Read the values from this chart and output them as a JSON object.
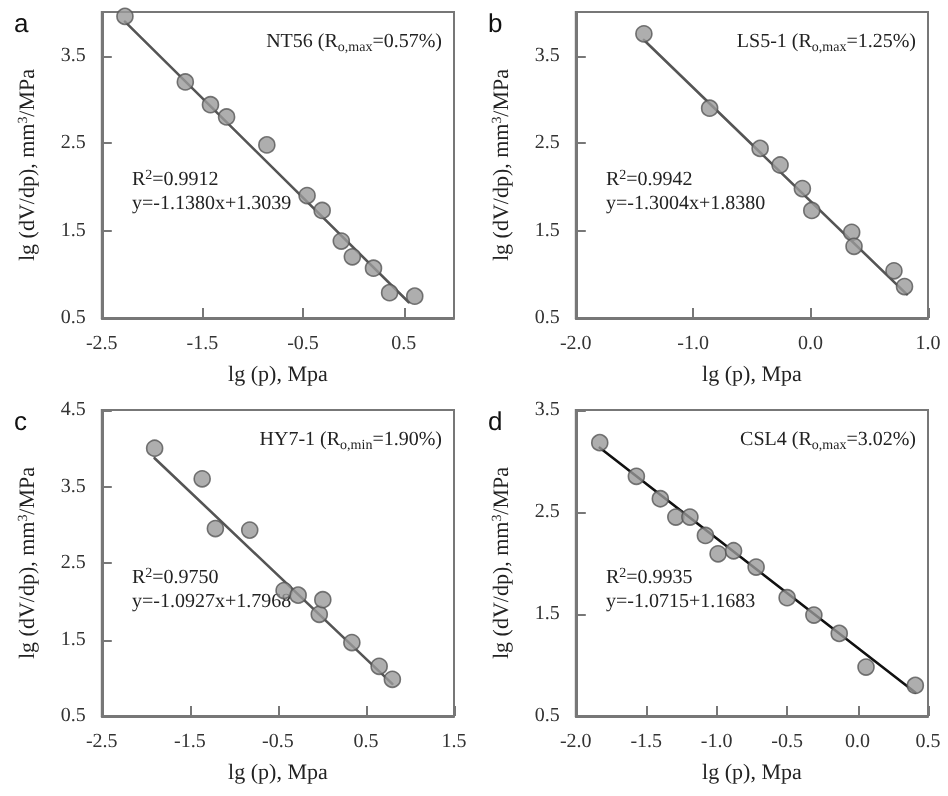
{
  "chart_data": [
    {
      "type": "scatter",
      "title": "a",
      "xlabel": "lg (p), Mpa",
      "ylabel": "lg (dV/dp), mm$^{3}$/MPa",
      "annotations": [
        "NT56 (R$_{o,max}$=0.57%)",
        "R$^{2}$=0.9912",
        "y=-1.1380x+1.3039"
      ],
      "xlim": [
        -2.5,
        1.0
      ],
      "xticks": [
        -2.5,
        -1.5,
        -0.5,
        0.5
      ],
      "ylim": [
        0.5,
        4.0
      ],
      "yticks": [
        0.5,
        1.5,
        2.5,
        3.5
      ],
      "series": [
        {
          "marker": "circle",
          "color": "#9a9a9a",
          "x": [
            -2.27,
            -1.67,
            -1.42,
            -1.26,
            -0.86,
            -0.46,
            -0.31,
            -0.12,
            -0.01,
            0.2,
            0.36,
            0.61
          ],
          "values": [
            3.95,
            3.2,
            2.94,
            2.8,
            2.48,
            1.9,
            1.73,
            1.38,
            1.2,
            1.07,
            0.79,
            0.75
          ]
        },
        {
          "type": "line",
          "color": "#555555",
          "x": [
            -2.27,
            0.55
          ],
          "values": [
            3.89,
            0.68
          ]
        }
      ]
    },
    {
      "type": "scatter",
      "title": "b",
      "xlabel": "lg (p), Mpa",
      "ylabel": "lg (dV/dp), mm$^{3}$/MPa",
      "annotations": [
        "LS5-1 (R$_{o,max}$=1.25%)",
        "R$^{2}$=0.9942",
        "y=-1.3004x+1.8380"
      ],
      "xlim": [
        -2.0,
        1.0
      ],
      "xticks": [
        {
          "value": -2,
          "label": "-2.0"
        },
        {
          "value": -1,
          "label": "-1.0"
        },
        {
          "value": 0,
          "label": "0.0"
        },
        {
          "value": 1,
          "label": "1.0"
        }
      ],
      "ylim": [
        0.5,
        4.0
      ],
      "yticks": [
        0.5,
        1.5,
        2.5,
        3.5
      ],
      "series": [
        {
          "marker": "circle",
          "color": "#9a9a9a",
          "x": [
            -1.42,
            -0.86,
            -0.43,
            -0.26,
            -0.07,
            0.01,
            0.35,
            0.37,
            0.71,
            0.8
          ],
          "values": [
            3.75,
            2.9,
            2.44,
            2.25,
            1.98,
            1.73,
            1.48,
            1.32,
            1.04,
            0.86
          ]
        },
        {
          "type": "line",
          "color": "#555555",
          "x": [
            -1.42,
            0.82
          ],
          "values": [
            3.68,
            0.77
          ]
        }
      ]
    },
    {
      "type": "scatter",
      "title": "c",
      "xlabel": "lg (p), Mpa",
      "ylabel": "lg (dV/dp), mm$^{3}$/MPa",
      "annotations": [
        "HY7-1 (R$_{o,min}$=1.90%)",
        "R$^{2}$=0.9750",
        "y=-1.0927x+1.7968"
      ],
      "xlim": [
        -2.5,
        1.5
      ],
      "xticks": [
        -2.5,
        -1.5,
        -0.5,
        0.5,
        1.5
      ],
      "ylim": [
        0.5,
        4.5
      ],
      "yticks": [
        0.5,
        1.5,
        2.5,
        3.5,
        4.5
      ],
      "series": [
        {
          "marker": "circle",
          "color": "#9a9a9a",
          "x": [
            -1.9,
            -1.36,
            -1.21,
            -0.82,
            -0.43,
            -0.27,
            -0.03,
            0.01,
            0.34,
            0.65,
            0.8
          ],
          "values": [
            4.0,
            3.6,
            2.95,
            2.93,
            2.14,
            2.08,
            1.83,
            2.02,
            1.46,
            1.15,
            0.98
          ]
        },
        {
          "type": "line",
          "color": "#555555",
          "x": [
            -1.9,
            0.8
          ],
          "values": [
            3.87,
            0.92
          ]
        }
      ]
    },
    {
      "type": "scatter",
      "title": "d",
      "xlabel": "lg (p), Mpa",
      "ylabel": "lg (dV/dp), mm$^{3}$/MPa",
      "annotations": [
        "CSL4 (R$_{o,max}$=3.02%)",
        "R$^{2}$=0.9935",
        "y=-1.0715+1.1683"
      ],
      "xlim": [
        -2.0,
        0.5
      ],
      "xticks": [
        {
          "value": -2,
          "label": "-2.0"
        },
        -1.5,
        {
          "value": -1,
          "label": "-1.0"
        },
        -0.5,
        {
          "value": 0,
          "label": "0.0"
        },
        0.5
      ],
      "ylim": [
        0.5,
        3.5
      ],
      "yticks": [
        0.5,
        1.5,
        2.5,
        3.5
      ],
      "series": [
        {
          "marker": "circle",
          "color": "#9a9a9a",
          "x": [
            -1.83,
            -1.57,
            -1.4,
            -1.29,
            -1.19,
            -1.08,
            -0.99,
            -0.88,
            -0.72,
            -0.5,
            -0.31,
            -0.13,
            0.06,
            0.41
          ],
          "values": [
            3.18,
            2.85,
            2.63,
            2.45,
            2.45,
            2.27,
            2.09,
            2.12,
            1.96,
            1.66,
            1.49,
            1.31,
            0.98,
            0.8
          ]
        },
        {
          "type": "line",
          "color": "#111111",
          "x": [
            -1.83,
            0.41
          ],
          "values": [
            3.13,
            0.73
          ]
        }
      ]
    }
  ]
}
